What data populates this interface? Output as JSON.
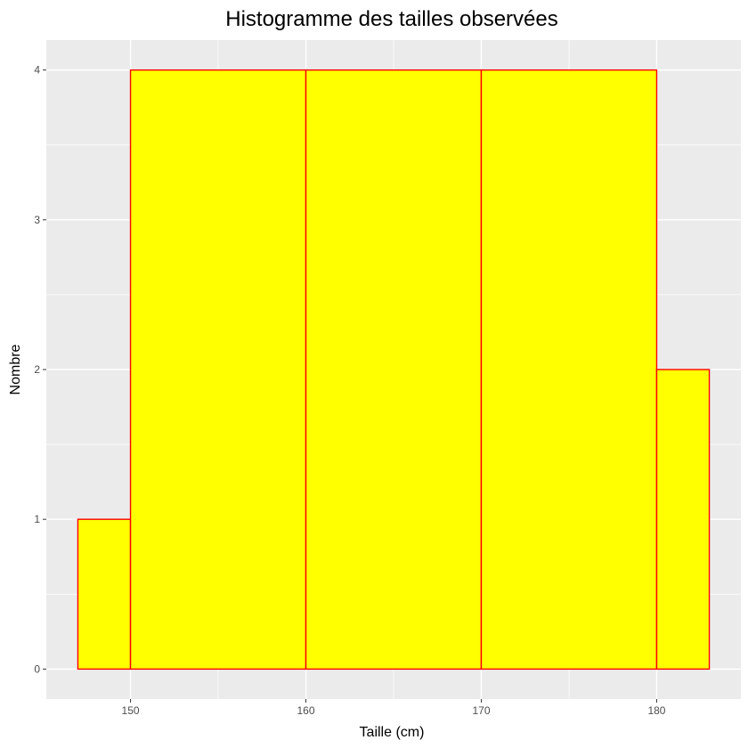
{
  "chart_data": {
    "type": "bar",
    "title": "Histogramme des tailles observées",
    "xlabel": "Taille (cm)",
    "ylabel": "Nombre",
    "xlim": [
      145.2,
      184.8
    ],
    "ylim": [
      -0.2,
      4.2
    ],
    "x_ticks": [
      150,
      160,
      170,
      180
    ],
    "y_ticks": [
      0,
      1,
      2,
      3,
      4
    ],
    "bins": [
      {
        "from": 147,
        "to": 150,
        "count": 1
      },
      {
        "from": 150,
        "to": 160,
        "count": 4
      },
      {
        "from": 160,
        "to": 170,
        "count": 4
      },
      {
        "from": 170,
        "to": 180,
        "count": 4
      },
      {
        "from": 180,
        "to": 183,
        "count": 2
      }
    ],
    "panel_background": "#ebebeb",
    "grid": true,
    "grid_color": "#ffffff",
    "bar_fill": "#ffff00",
    "bar_outline": "#ff0000",
    "tick_color": "#333333"
  }
}
